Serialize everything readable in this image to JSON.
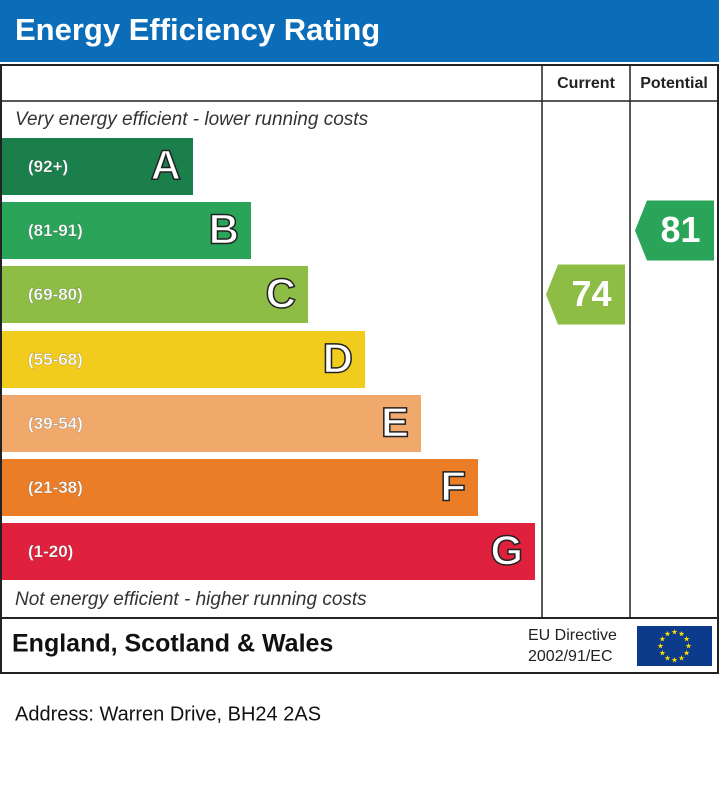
{
  "header": {
    "title": "Energy Efficiency Rating"
  },
  "table": {
    "columns": [
      "Current",
      "Potential"
    ]
  },
  "top_note": "Very energy efficient - lower running costs",
  "bottom_note": "Not energy efficient - higher running costs",
  "bands": [
    {
      "range": "(92+)",
      "letter": "A",
      "color": "#1a7f4b"
    },
    {
      "range": "(81-91)",
      "letter": "B",
      "color": "#2aa458"
    },
    {
      "range": "(69-80)",
      "letter": "C",
      "color": "#8dbd44"
    },
    {
      "range": "(55-68)",
      "letter": "D",
      "color": "#f2cc1c"
    },
    {
      "range": "(39-54)",
      "letter": "E",
      "color": "#f0a96a"
    },
    {
      "range": "(21-38)",
      "letter": "F",
      "color": "#ec7d27"
    },
    {
      "range": "(1-20)",
      "letter": "G",
      "color": "#e0213d"
    }
  ],
  "current": {
    "value": 74
  },
  "potential": {
    "value": 81
  },
  "footer": {
    "region": "England, Scotland & Wales",
    "directive": [
      "EU Directive",
      "2002/91/EC"
    ]
  },
  "address": "Address: Warren Drive, BH24 2AS"
}
